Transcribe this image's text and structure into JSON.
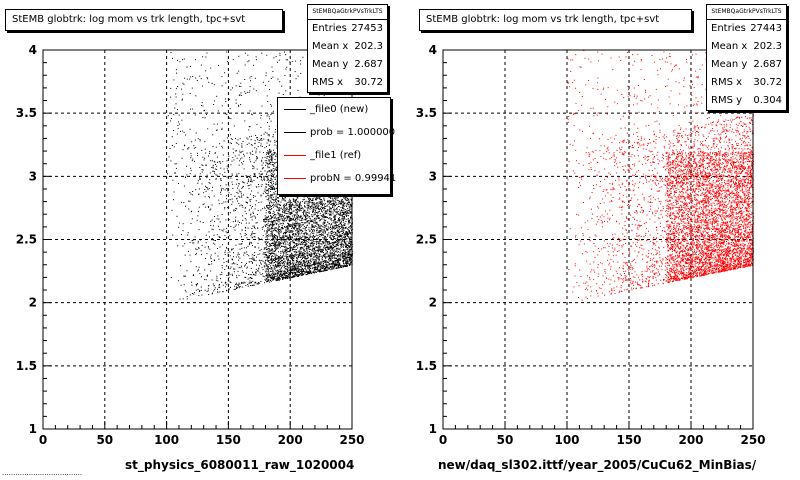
{
  "chart_data": [
    {
      "type": "scatter",
      "title": "StEMB globtrk: log mom vs trk length, tpc+svt",
      "xlabel": "st_physics_6080011_raw_1020004",
      "ylabel": "",
      "xlim": [
        0,
        250
      ],
      "ylim": [
        1,
        4
      ],
      "xticks": [
        "0",
        "50",
        "100",
        "150",
        "200",
        "250"
      ],
      "yticks": [
        "1",
        "1.5",
        "2",
        "2.5",
        "3",
        "3.5",
        "4"
      ],
      "grid": true,
      "marker_color": "#000000",
      "stats": {
        "name": "StEMBQaGtrkPVsTrkLTS",
        "rows": [
          {
            "label": "Entries",
            "value": "27453"
          },
          {
            "label": "Mean x",
            "value": "202.3"
          },
          {
            "label": "Mean y",
            "value": "2.687"
          },
          {
            "label": "RMS x",
            "value": "30.72"
          }
        ]
      },
      "legend": {
        "placement": "top-right",
        "entries": [
          {
            "label": "_file0 (new)",
            "color": "#000000"
          },
          {
            "label": "prob = 1.000000",
            "color": "#000000"
          },
          {
            "label": "_file1 (ref)",
            "color": "#ff0000"
          },
          {
            "label": "probN = 0.99941",
            "color": "#ff0000"
          }
        ]
      },
      "density": {
        "x_range": [
          100,
          250
        ],
        "y_band_bottom_at_x100": 2.0,
        "y_band_bottom_at_x250": 2.3,
        "dense_region": {
          "x": [
            180,
            250
          ],
          "y": [
            2.3,
            3.2
          ]
        }
      }
    },
    {
      "type": "scatter",
      "title": "StEMB globtrk: log mom vs trk length, tpc+svt",
      "xlabel": "new/daq_sl302.ittf/year_2005/CuCu62_MinBias/",
      "ylabel": "",
      "xlim": [
        0,
        250
      ],
      "ylim": [
        1,
        4
      ],
      "xticks": [
        "0",
        "50",
        "100",
        "150",
        "200",
        "250"
      ],
      "yticks": [
        "1",
        "1.5",
        "2",
        "2.5",
        "3",
        "3.5",
        "4"
      ],
      "grid": true,
      "marker_color": "#ff0000",
      "stats": {
        "name": "StEMBQaGtrkPVsTrkLTS",
        "rows": [
          {
            "label": "Entries",
            "value": "27443"
          },
          {
            "label": "Mean x",
            "value": "202.3"
          },
          {
            "label": "Mean y",
            "value": "2.687"
          },
          {
            "label": "RMS x",
            "value": "30.72"
          },
          {
            "label": "RMS y",
            "value": "0.304"
          }
        ]
      },
      "density": {
        "x_range": [
          100,
          250
        ],
        "y_band_bottom_at_x100": 2.0,
        "y_band_bottom_at_x250": 2.3,
        "dense_region": {
          "x": [
            180,
            250
          ],
          "y": [
            2.3,
            3.2
          ]
        }
      }
    }
  ],
  "footer_text": "...................................."
}
